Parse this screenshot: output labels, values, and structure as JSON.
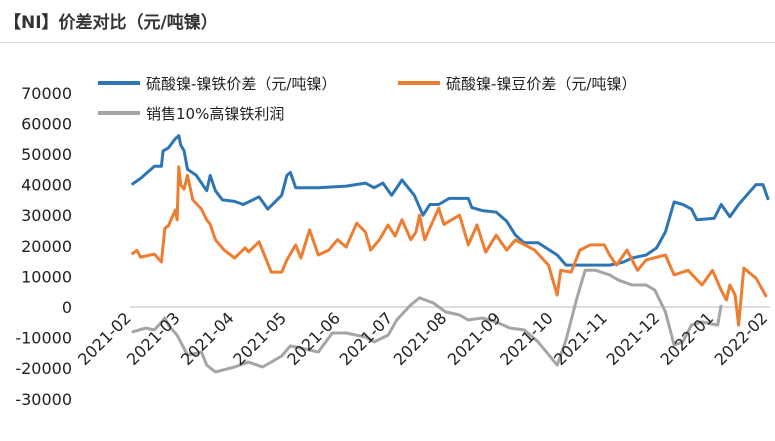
{
  "title": "【NI】价差对比（元/吨镍）",
  "chart_data": {
    "type": "line",
    "ylim": [
      -30000,
      70000
    ],
    "yticks": [
      70000,
      60000,
      50000,
      40000,
      30000,
      20000,
      10000,
      0,
      -10000,
      -20000,
      -30000
    ],
    "xlim": [
      "2021-02-01",
      "2022-02-03"
    ],
    "xticks": [
      "2021-02",
      "2021-03",
      "2021-04",
      "2021-05",
      "2021-06",
      "2021-07",
      "2021-08",
      "2021-09",
      "2021-10",
      "2021-11",
      "2021-12",
      "2022-01",
      "2022-02"
    ],
    "grid": false,
    "legend": "top",
    "series": [
      {
        "name": "硫酸镍-镍铁价差（元/吨镍）",
        "color": "#2e75b6",
        "points": [
          [
            "2021-02-02",
            40000
          ],
          [
            "2021-02-07",
            42000
          ],
          [
            "2021-02-15",
            46000
          ],
          [
            "2021-02-19",
            46000
          ],
          [
            "2021-02-20",
            51000
          ],
          [
            "2021-02-23",
            52000
          ],
          [
            "2021-02-27",
            55000
          ],
          [
            "2021-03-01",
            56000
          ],
          [
            "2021-03-02",
            53000
          ],
          [
            "2021-03-04",
            51000
          ],
          [
            "2021-03-06",
            45000
          ],
          [
            "2021-03-11",
            43000
          ],
          [
            "2021-03-17",
            38000
          ],
          [
            "2021-03-19",
            43000
          ],
          [
            "2021-03-22",
            38000
          ],
          [
            "2021-03-26",
            35000
          ],
          [
            "2021-04-02",
            34500
          ],
          [
            "2021-04-07",
            33500
          ],
          [
            "2021-04-16",
            36000
          ],
          [
            "2021-04-21",
            32000
          ],
          [
            "2021-04-29",
            36500
          ],
          [
            "2021-05-02",
            43000
          ],
          [
            "2021-05-04",
            44000
          ],
          [
            "2021-05-07",
            39000
          ],
          [
            "2021-05-20",
            39000
          ],
          [
            "2021-06-05",
            39500
          ],
          [
            "2021-06-16",
            40500
          ],
          [
            "2021-06-21",
            39000
          ],
          [
            "2021-06-26",
            40500
          ],
          [
            "2021-07-01",
            36500
          ],
          [
            "2021-07-07",
            41500
          ],
          [
            "2021-07-14",
            36500
          ],
          [
            "2021-07-19",
            30000
          ],
          [
            "2021-07-23",
            33500
          ],
          [
            "2021-07-28",
            33500
          ],
          [
            "2021-08-03",
            35500
          ],
          [
            "2021-08-14",
            35500
          ],
          [
            "2021-08-16",
            32500
          ],
          [
            "2021-08-22",
            31500
          ],
          [
            "2021-08-30",
            31000
          ],
          [
            "2021-09-05",
            28000
          ],
          [
            "2021-09-10",
            23500
          ],
          [
            "2021-09-15",
            21000
          ],
          [
            "2021-09-23",
            21000
          ],
          [
            "2021-10-04",
            17000
          ],
          [
            "2021-10-09",
            13700
          ],
          [
            "2021-11-03",
            13700
          ],
          [
            "2021-11-11",
            14700
          ],
          [
            "2021-11-16",
            16000
          ],
          [
            "2021-11-24",
            17000
          ],
          [
            "2021-11-30",
            19300
          ],
          [
            "2021-12-05",
            24500
          ],
          [
            "2021-12-10",
            34300
          ],
          [
            "2021-12-15",
            33500
          ],
          [
            "2021-12-20",
            32000
          ],
          [
            "2021-12-23",
            28500
          ],
          [
            "2022-01-02",
            29000
          ],
          [
            "2022-01-06",
            33500
          ],
          [
            "2022-01-11",
            29500
          ],
          [
            "2022-01-16",
            33500
          ],
          [
            "2022-01-26",
            40000
          ],
          [
            "2022-01-30",
            40000
          ],
          [
            "2022-02-02",
            35000
          ]
        ]
      },
      {
        "name": "硫酸镍-镍豆价差（元/吨镍）",
        "color": "#ed7d31",
        "points": [
          [
            "2021-02-02",
            17300
          ],
          [
            "2021-02-05",
            18500
          ],
          [
            "2021-02-07",
            16300
          ],
          [
            "2021-02-15",
            17300
          ],
          [
            "2021-02-19",
            14700
          ],
          [
            "2021-02-21",
            25800
          ],
          [
            "2021-02-23",
            26500
          ],
          [
            "2021-02-27",
            31700
          ],
          [
            "2021-02-28",
            28500
          ],
          [
            "2021-03-01",
            45800
          ],
          [
            "2021-03-02",
            40000
          ],
          [
            "2021-03-04",
            38500
          ],
          [
            "2021-03-06",
            43000
          ],
          [
            "2021-03-09",
            35000
          ],
          [
            "2021-03-14",
            32000
          ],
          [
            "2021-03-17",
            28500
          ],
          [
            "2021-03-19",
            27000
          ],
          [
            "2021-03-22",
            22000
          ],
          [
            "2021-03-27",
            18600
          ],
          [
            "2021-04-02",
            16000
          ],
          [
            "2021-04-08",
            19300
          ],
          [
            "2021-04-10",
            18000
          ],
          [
            "2021-04-16",
            21300
          ],
          [
            "2021-04-23",
            11400
          ],
          [
            "2021-04-29",
            11400
          ],
          [
            "2021-05-02",
            15400
          ],
          [
            "2021-05-07",
            20300
          ],
          [
            "2021-05-10",
            16000
          ],
          [
            "2021-05-15",
            25200
          ],
          [
            "2021-05-20",
            17000
          ],
          [
            "2021-05-26",
            18600
          ],
          [
            "2021-05-31",
            22000
          ],
          [
            "2021-06-05",
            19600
          ],
          [
            "2021-06-11",
            27400
          ],
          [
            "2021-06-16",
            24500
          ],
          [
            "2021-06-19",
            18600
          ],
          [
            "2021-06-24",
            22000
          ],
          [
            "2021-06-29",
            26800
          ],
          [
            "2021-07-03",
            23200
          ],
          [
            "2021-07-07",
            28500
          ],
          [
            "2021-07-12",
            22000
          ],
          [
            "2021-07-15",
            24500
          ],
          [
            "2021-07-17",
            30000
          ],
          [
            "2021-07-20",
            22000
          ],
          [
            "2021-07-28",
            32300
          ],
          [
            "2021-07-31",
            27000
          ],
          [
            "2021-08-09",
            30000
          ],
          [
            "2021-08-14",
            20300
          ],
          [
            "2021-08-19",
            26800
          ],
          [
            "2021-08-24",
            17900
          ],
          [
            "2021-08-30",
            23500
          ],
          [
            "2021-09-05",
            18600
          ],
          [
            "2021-09-10",
            21900
          ],
          [
            "2021-09-21",
            18600
          ],
          [
            "2021-09-29",
            13700
          ],
          [
            "2021-10-04",
            3900
          ],
          [
            "2021-10-06",
            12000
          ],
          [
            "2021-10-12",
            11400
          ],
          [
            "2021-10-17",
            18600
          ],
          [
            "2021-10-23",
            20300
          ],
          [
            "2021-10-31",
            20300
          ],
          [
            "2021-11-03",
            17000
          ],
          [
            "2021-11-07",
            13700
          ],
          [
            "2021-11-13",
            18600
          ],
          [
            "2021-11-19",
            12000
          ],
          [
            "2021-11-24",
            15400
          ],
          [
            "2021-12-05",
            17000
          ],
          [
            "2021-12-10",
            10500
          ],
          [
            "2021-12-18",
            12000
          ],
          [
            "2021-12-26",
            7200
          ],
          [
            "2022-01-01",
            12000
          ],
          [
            "2022-01-06",
            5500
          ],
          [
            "2022-01-09",
            2300
          ],
          [
            "2022-01-11",
            7200
          ],
          [
            "2022-01-14",
            3900
          ],
          [
            "2022-01-16",
            -5900
          ],
          [
            "2022-01-19",
            12700
          ],
          [
            "2022-01-26",
            9400
          ],
          [
            "2022-02-01",
            3300
          ]
        ]
      },
      {
        "name": "销售10%高镍铁利润",
        "color": "#a5a5a5",
        "points": [
          [
            "2021-02-02",
            -8200
          ],
          [
            "2021-02-10",
            -6900
          ],
          [
            "2021-02-15",
            -7500
          ],
          [
            "2021-02-19",
            -5000
          ],
          [
            "2021-02-21",
            -3600
          ],
          [
            "2021-02-23",
            -5900
          ],
          [
            "2021-02-28",
            -9200
          ],
          [
            "2021-03-06",
            -15700
          ],
          [
            "2021-03-14",
            -14700
          ],
          [
            "2021-03-17",
            -19000
          ],
          [
            "2021-03-22",
            -21200
          ],
          [
            "2021-04-02",
            -19600
          ],
          [
            "2021-04-10",
            -18000
          ],
          [
            "2021-04-18",
            -19600
          ],
          [
            "2021-04-23",
            -18000
          ],
          [
            "2021-04-29",
            -16000
          ],
          [
            "2021-05-04",
            -12700
          ],
          [
            "2021-05-20",
            -14700
          ],
          [
            "2021-05-28",
            -8500
          ],
          [
            "2021-06-05",
            -8500
          ],
          [
            "2021-06-16",
            -9800
          ],
          [
            "2021-06-21",
            -11400
          ],
          [
            "2021-06-29",
            -9200
          ],
          [
            "2021-07-04",
            -4200
          ],
          [
            "2021-07-12",
            700
          ],
          [
            "2021-07-17",
            3000
          ],
          [
            "2021-07-25",
            1300
          ],
          [
            "2021-08-01",
            -1600
          ],
          [
            "2021-08-09",
            -2600
          ],
          [
            "2021-08-14",
            -4200
          ],
          [
            "2021-08-22",
            -3600
          ],
          [
            "2021-08-30",
            -4900
          ],
          [
            "2021-09-07",
            -6900
          ],
          [
            "2021-09-15",
            -7500
          ],
          [
            "2021-09-23",
            -11400
          ],
          [
            "2021-10-04",
            -19000
          ],
          [
            "2021-10-09",
            -10800
          ],
          [
            "2021-10-15",
            2300
          ],
          [
            "2021-10-20",
            12000
          ],
          [
            "2021-10-26",
            12000
          ],
          [
            "2021-11-03",
            10500
          ],
          [
            "2021-11-08",
            8800
          ],
          [
            "2021-11-16",
            7200
          ],
          [
            "2021-11-24",
            7200
          ],
          [
            "2021-11-29",
            5500
          ],
          [
            "2021-12-05",
            -1600
          ],
          [
            "2021-12-10",
            -12400
          ],
          [
            "2021-12-15",
            -11400
          ],
          [
            "2021-12-20",
            -5900
          ],
          [
            "2021-12-26",
            -4900
          ],
          [
            "2022-01-04",
            -5900
          ],
          [
            "2022-01-06",
            700
          ]
        ]
      }
    ]
  }
}
